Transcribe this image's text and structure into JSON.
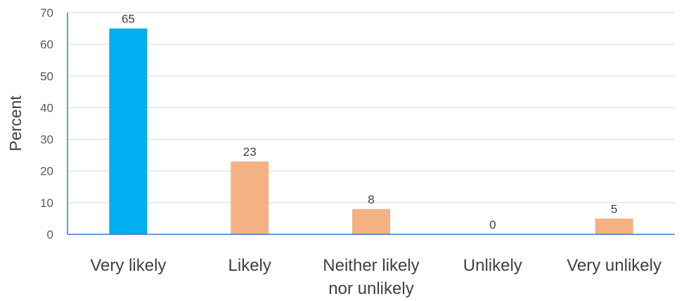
{
  "chart_data": {
    "type": "bar",
    "title": "",
    "xlabel": "",
    "ylabel": "Percent",
    "ylim": [
      0,
      70
    ],
    "yticks": [
      0,
      10,
      20,
      30,
      40,
      50,
      60,
      70
    ],
    "grid": true,
    "legend": "none",
    "categories": [
      [
        "Very likely"
      ],
      [
        "Likely"
      ],
      [
        "Neither likely",
        "nor unlikely"
      ],
      [
        "Unlikely"
      ],
      [
        "Very unlikely"
      ]
    ],
    "values": [
      65,
      23,
      8,
      0,
      5
    ],
    "data_labels": [
      "65",
      "23",
      "8",
      "0",
      "5"
    ],
    "bar_colors": [
      "#00b0f0",
      "#f4b183",
      "#f4b183",
      "#f4b183",
      "#f4b183"
    ],
    "axis_color": "#4472c4",
    "grid_color": "#d9d9d9"
  }
}
